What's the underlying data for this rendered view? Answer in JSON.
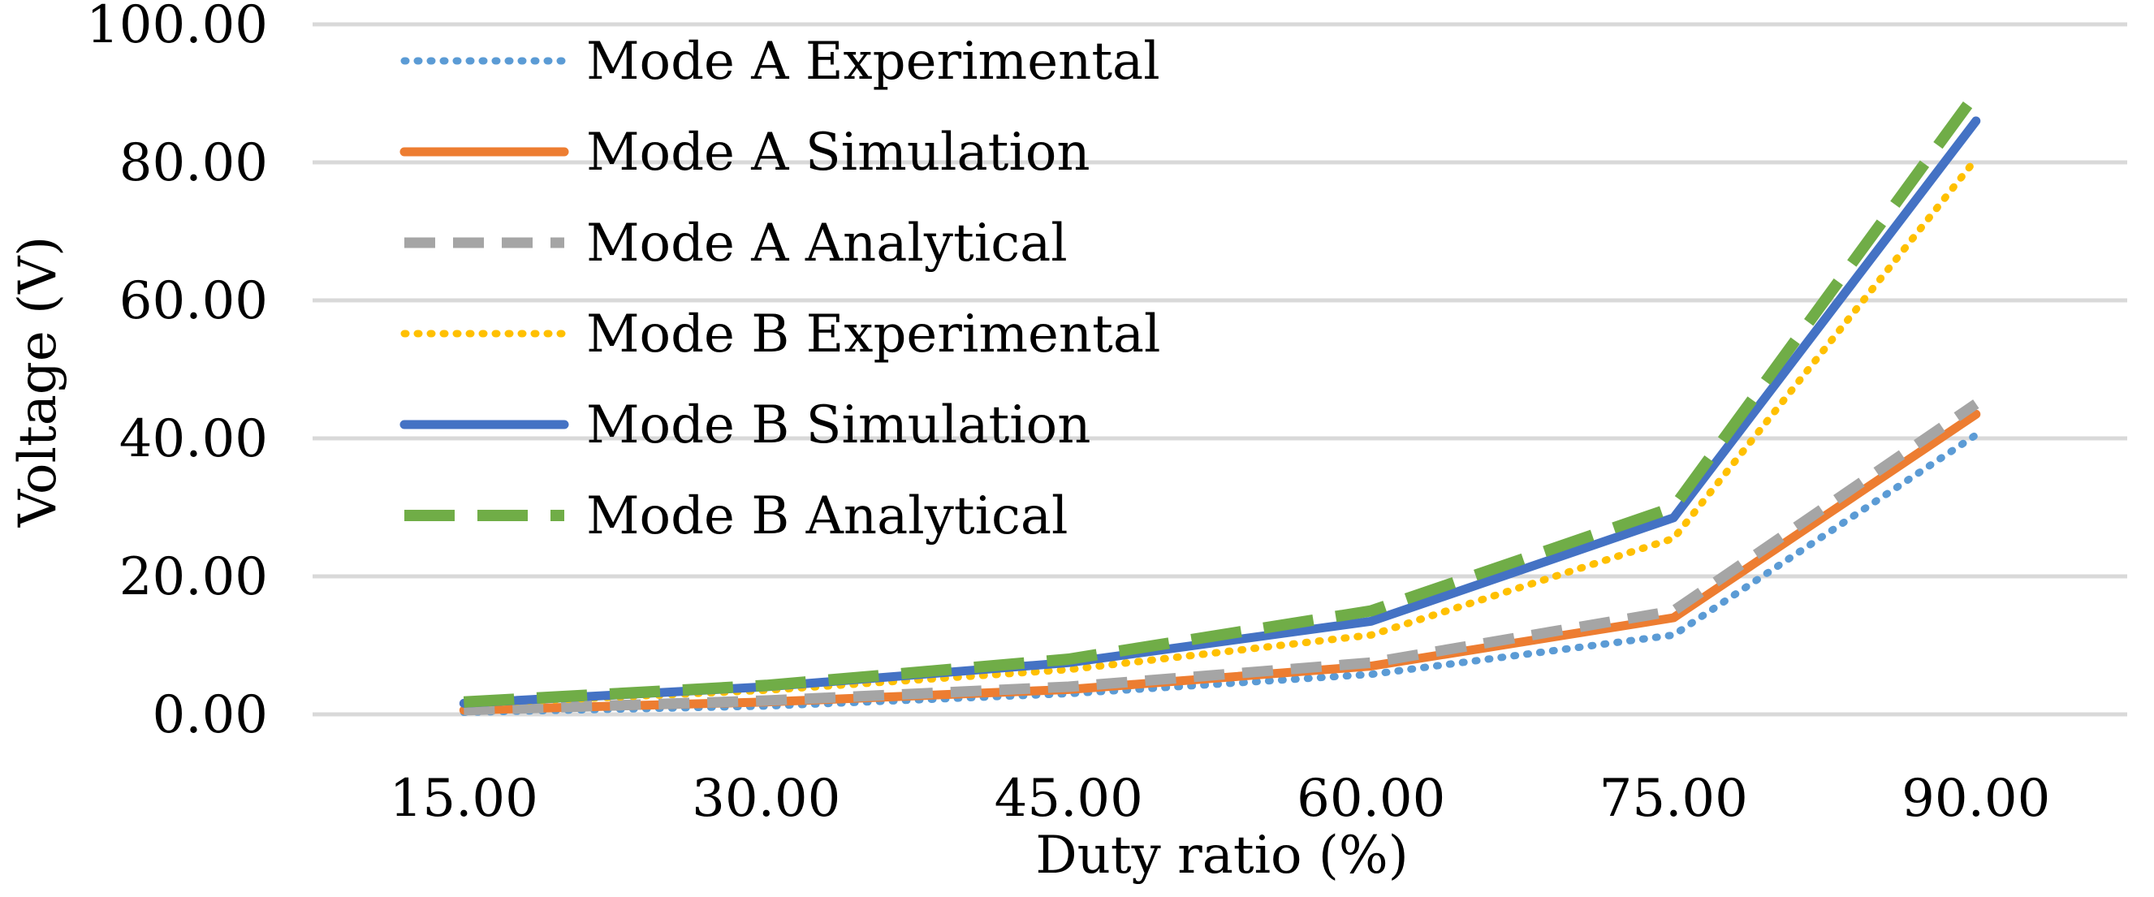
{
  "chart_data": {
    "type": "line",
    "title": "",
    "xlabel": "Duty ratio (%)",
    "ylabel": "Voltage (V)",
    "categories": [
      "15.00",
      "30.00",
      "45.00",
      "60.00",
      "75.00",
      "90.00"
    ],
    "x": [
      15,
      30,
      45,
      60,
      75,
      90
    ],
    "ylim": [
      0,
      100
    ],
    "yticks": [
      "0.00",
      "20.00",
      "40.00",
      "60.00",
      "80.00",
      "100.00"
    ],
    "grid": true,
    "legend_position": "top-left",
    "series": [
      {
        "name": "Mode A Experimental",
        "values": [
          0.3,
          1.2,
          3.0,
          5.8,
          11.5,
          40.5
        ],
        "color": "#5b9bd5",
        "style": "dotted"
      },
      {
        "name": "Mode A Simulation",
        "values": [
          0.6,
          1.8,
          3.6,
          7.0,
          14.0,
          43.5
        ],
        "color": "#ed7d31",
        "style": "solid"
      },
      {
        "name": "Mode A Analytical",
        "values": [
          0.6,
          2.0,
          4.0,
          7.5,
          15.0,
          45.0
        ],
        "color": "#a5a5a5",
        "style": "dashed"
      },
      {
        "name": "Mode B Experimental",
        "values": [
          1.5,
          3.5,
          6.5,
          11.5,
          25.5,
          80.5
        ],
        "color": "#ffc000",
        "style": "dotted"
      },
      {
        "name": "Mode B Simulation",
        "values": [
          1.6,
          4.0,
          7.5,
          13.5,
          28.5,
          86.0
        ],
        "color": "#4472c4",
        "style": "solid"
      },
      {
        "name": "Mode B Analytical",
        "values": [
          1.8,
          4.2,
          8.0,
          15.0,
          30.0,
          90.0
        ],
        "color": "#70ad47",
        "style": "longdash"
      }
    ]
  }
}
